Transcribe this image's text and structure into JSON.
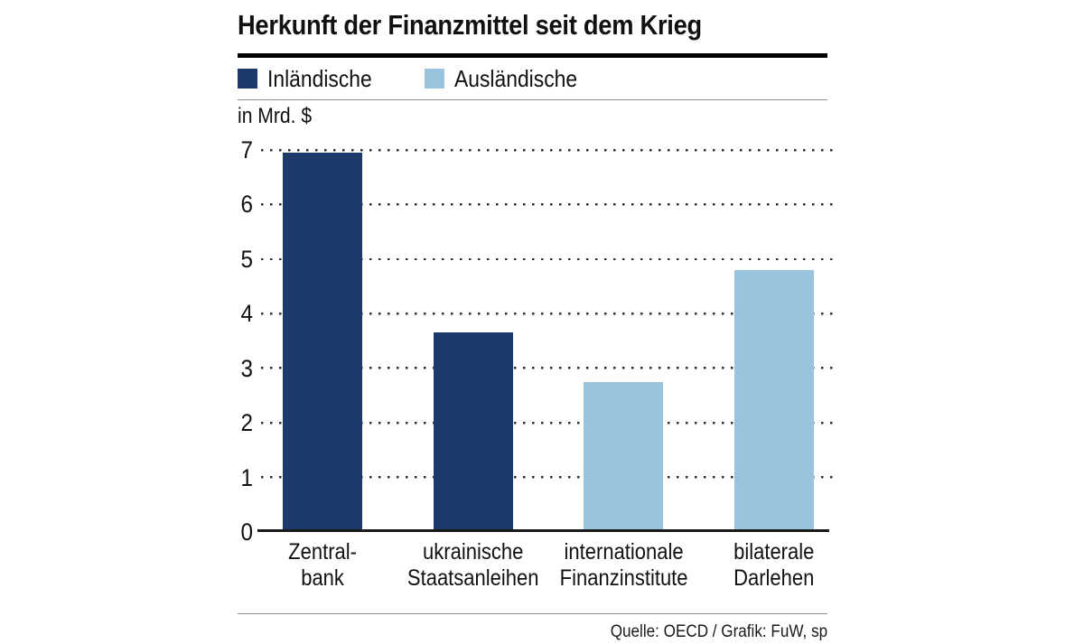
{
  "title": "Herkunft der Finanzmittel seit dem Krieg",
  "unit_label": "in Mrd. $",
  "footer": "Quelle: OECD / Grafik: FuW, sp",
  "legend": [
    {
      "label": "Inländische",
      "color": "#1b3a69"
    },
    {
      "label": "Ausländische",
      "color": "#9ac4de"
    }
  ],
  "colors": {
    "domestic": "#1b3a69",
    "foreign": "#9ac4de",
    "baseline": "#1a1a1a",
    "grid_dots": "#2e2e2e",
    "rule_gray": "#8e8e8e",
    "rule_black": "#000000"
  },
  "chart_data": {
    "type": "bar",
    "title": "Herkunft der Finanzmittel seit dem Krieg",
    "xlabel": "",
    "ylabel": "in Mrd. $",
    "ylim": [
      0,
      7
    ],
    "yticks": [
      0,
      1,
      2,
      3,
      4,
      5,
      6,
      7
    ],
    "grid": "horizontal dotted",
    "legend_position": "top",
    "categories": [
      [
        "Zentral-",
        "bank"
      ],
      [
        "ukrainische",
        "Staatsanleihen"
      ],
      [
        "internationale",
        "Finanzinstitute"
      ],
      [
        "bilaterale",
        "Darlehen"
      ]
    ],
    "values": [
      6.95,
      3.65,
      2.75,
      4.8
    ],
    "series_of_bar": [
      "Inländische",
      "Inländische",
      "Ausländische",
      "Ausländische"
    ],
    "bar_colors": [
      "#1b3a69",
      "#1b3a69",
      "#9ac4de",
      "#9ac4de"
    ]
  }
}
